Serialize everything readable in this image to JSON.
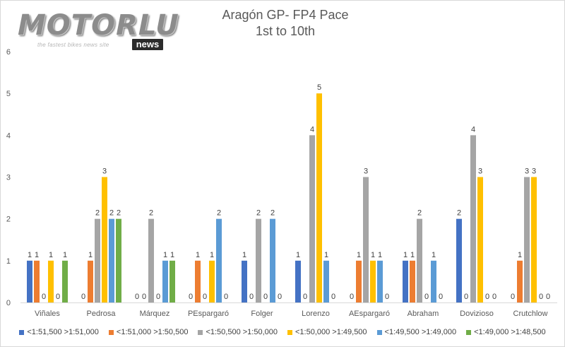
{
  "logo": {
    "wordmark": "MOTORLU",
    "tagline": "the fastest bikes news site",
    "badge": "news"
  },
  "title_lines": [
    "Aragón GP- FP4 Pace",
    "1st to 10th"
  ],
  "chart_data": {
    "type": "bar",
    "title": "Aragón GP- FP4 Pace 1st to 10th",
    "categories": [
      "Viñales",
      "Pedrosa",
      "Márquez",
      "PEspargaró",
      "Folger",
      "Lorenzo",
      "AEspargaró",
      "Abraham",
      "Dovizioso",
      "Crutchlow"
    ],
    "series": [
      {
        "name": "<1:51,500 >1:51,000",
        "color": "#4472c4",
        "values": [
          1,
          0,
          0,
          0,
          1,
          1,
          0,
          1,
          2,
          0
        ]
      },
      {
        "name": "<1:51,000 >1:50,500",
        "color": "#ed7d31",
        "values": [
          1,
          1,
          0,
          1,
          0,
          0,
          1,
          1,
          0,
          1
        ]
      },
      {
        "name": "<1:50,500 >1:50,000",
        "color": "#a5a5a5",
        "values": [
          0,
          2,
          2,
          0,
          2,
          4,
          3,
          2,
          4,
          3
        ]
      },
      {
        "name": "<1:50,000 >1:49,500",
        "color": "#ffc000",
        "values": [
          1,
          3,
          0,
          1,
          0,
          5,
          1,
          0,
          3,
          3
        ]
      },
      {
        "name": "<1:49,500 >1:49,000",
        "color": "#5b9bd5",
        "values": [
          0,
          2,
          1,
          2,
          2,
          1,
          1,
          1,
          0,
          0
        ]
      },
      {
        "name": "<1:49,000 >1:48,500",
        "color": "#70ad47",
        "values": [
          1,
          2,
          1,
          0,
          0,
          0,
          0,
          0,
          0,
          0
        ]
      }
    ],
    "ylim": [
      0,
      6
    ],
    "yticks": [
      "0",
      "1",
      "2",
      "3",
      "4",
      "5",
      "6"
    ],
    "grid": false,
    "data_labels": true,
    "legend_position": "bottom"
  }
}
